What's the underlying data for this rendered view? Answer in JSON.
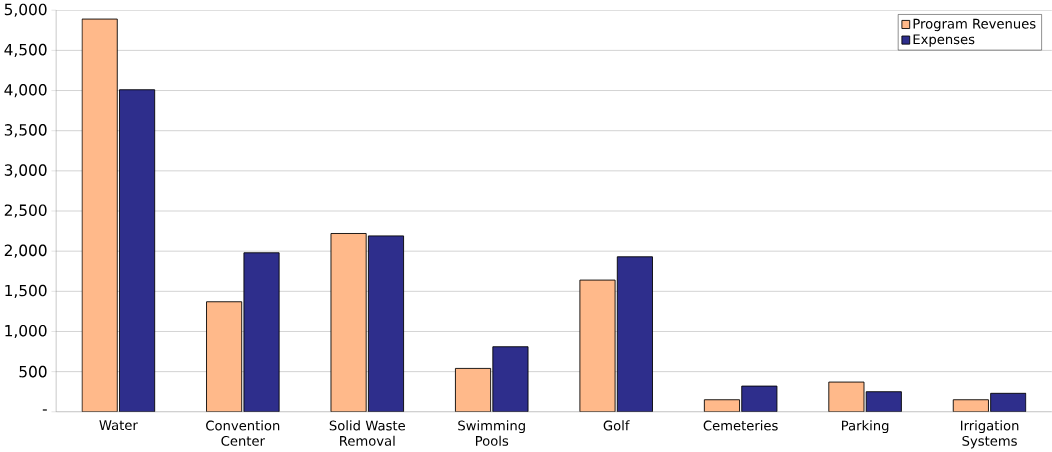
{
  "chart_data": {
    "type": "bar",
    "categories": [
      "Water",
      "Convention Center",
      "Solid Waste Removal",
      "Swimming Pools",
      "Golf",
      "Cemeteries",
      "Parking",
      "Irrigation Systems"
    ],
    "series": [
      {
        "name": "Program Revenues",
        "color": "#ffb98a",
        "values": [
          4890,
          1370,
          2220,
          540,
          1640,
          150,
          370,
          150
        ]
      },
      {
        "name": "Expenses",
        "color": "#2e2e8c",
        "values": [
          4010,
          1980,
          2190,
          810,
          1930,
          320,
          250,
          230
        ]
      }
    ],
    "ylim": [
      0,
      5000
    ],
    "yticks": [
      {
        "value": 0,
        "label": "-"
      },
      500,
      {
        "value": 1000,
        "label": "1,000"
      },
      {
        "value": 1500,
        "label": "1,500"
      },
      {
        "value": 2000,
        "label": "2,000"
      },
      {
        "value": 2500,
        "label": "2,500"
      },
      {
        "value": 3000,
        "label": "3,000"
      },
      {
        "value": 3500,
        "label": "3,500"
      },
      {
        "value": 4000,
        "label": "4,000"
      },
      {
        "value": 4500,
        "label": "4,500"
      },
      {
        "value": 5000,
        "label": "5,000"
      }
    ],
    "grid": "y",
    "legend": "top right"
  }
}
